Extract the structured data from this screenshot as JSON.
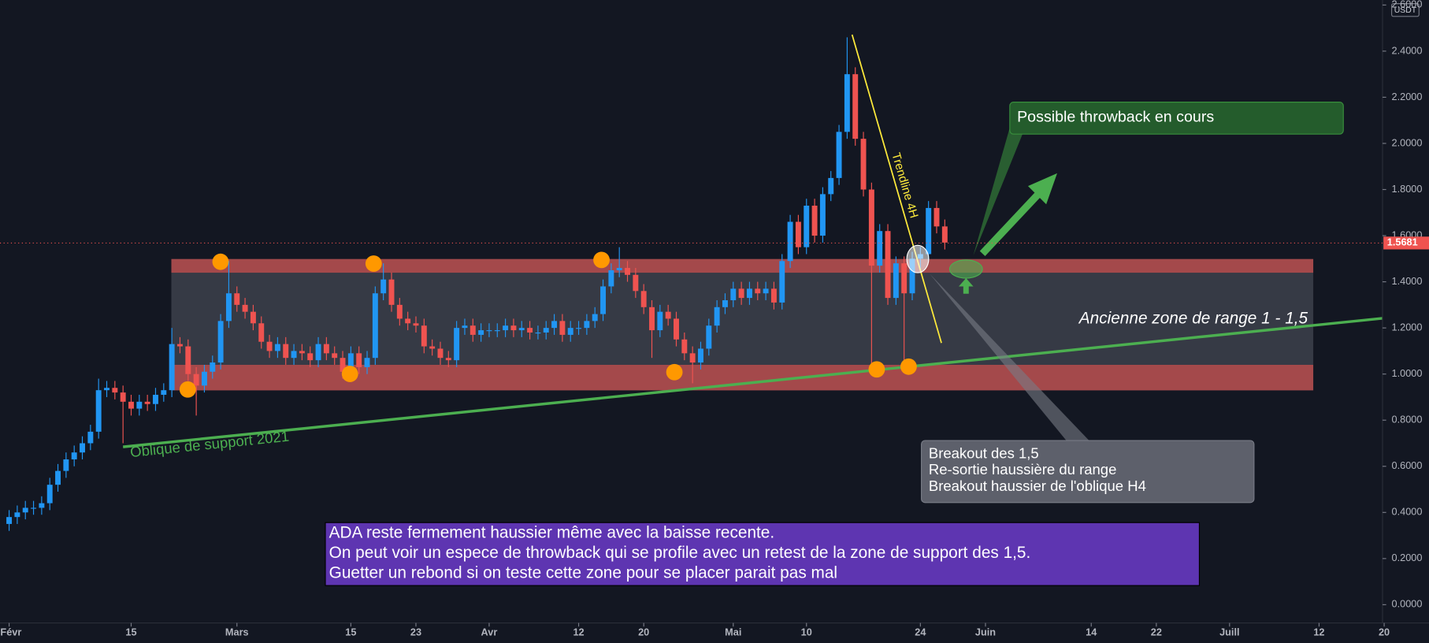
{
  "chart_data": {
    "type": "candlestick",
    "currency": "USDT",
    "up_color": "#2196f3",
    "down_color": "#ef5350",
    "x": [
      0,
      1,
      2,
      3,
      4,
      5,
      6,
      7,
      8,
      9,
      10,
      11,
      12,
      13,
      14,
      15,
      16,
      17,
      18,
      19,
      20,
      21,
      22,
      23,
      24,
      25,
      26,
      27,
      28,
      29,
      30,
      31,
      32,
      33,
      34,
      35,
      36,
      37,
      38,
      39,
      40,
      41,
      42,
      43,
      44,
      45,
      46,
      47,
      48,
      49,
      50,
      51,
      52,
      53,
      54,
      55,
      56,
      57,
      58,
      59,
      60,
      61,
      62,
      63,
      64,
      65,
      66,
      67,
      68,
      69,
      70,
      71,
      72,
      73,
      74,
      75,
      76,
      77,
      78,
      79,
      80,
      81,
      82,
      83,
      84,
      85,
      86,
      87,
      88,
      89,
      90,
      91,
      92,
      93,
      94,
      95,
      96,
      97,
      98,
      99,
      100,
      101,
      102,
      103,
      104,
      105,
      106,
      107,
      108,
      109,
      110,
      111,
      112,
      113,
      114,
      115
    ],
    "open": [
      0.35,
      0.38,
      0.4,
      0.42,
      0.42,
      0.44,
      0.52,
      0.58,
      0.63,
      0.66,
      0.7,
      0.75,
      0.93,
      0.94,
      0.92,
      0.88,
      0.85,
      0.88,
      0.87,
      0.91,
      0.93,
      1.13,
      1.12,
      1.0,
      0.95,
      1.01,
      1.05,
      1.23,
      1.35,
      1.3,
      1.27,
      1.22,
      1.14,
      1.1,
      1.13,
      1.07,
      1.1,
      1.09,
      1.06,
      1.13,
      1.09,
      1.07,
      1.01,
      1.09,
      1.03,
      1.07,
      1.35,
      1.41,
      1.3,
      1.24,
      1.22,
      1.21,
      1.12,
      1.11,
      1.07,
      1.06,
      1.2,
      1.21,
      1.17,
      1.19,
      1.19,
      1.19,
      1.21,
      1.19,
      1.2,
      1.18,
      1.18,
      1.2,
      1.23,
      1.17,
      1.2,
      1.2,
      1.23,
      1.26,
      1.38,
      1.45,
      1.46,
      1.43,
      1.36,
      1.29,
      1.19,
      1.27,
      1.24,
      1.15,
      1.09,
      1.05,
      1.11,
      1.21,
      1.29,
      1.32,
      1.37,
      1.33,
      1.37,
      1.35,
      1.37,
      1.31,
      1.49,
      1.66,
      1.55,
      1.73,
      1.6,
      1.78,
      1.85,
      2.05,
      2.3,
      2.02,
      1.8,
      1.47,
      1.62,
      1.33,
      1.48,
      1.35,
      1.5,
      1.52,
      1.72,
      1.64
    ],
    "high": [
      0.41,
      0.43,
      0.45,
      0.45,
      0.47,
      0.55,
      0.61,
      0.66,
      0.69,
      0.73,
      0.78,
      0.98,
      0.97,
      0.97,
      0.95,
      0.91,
      0.91,
      0.91,
      0.94,
      0.96,
      1.2,
      1.16,
      1.15,
      1.03,
      1.04,
      1.08,
      1.26,
      1.49,
      1.38,
      1.33,
      1.3,
      1.25,
      1.17,
      1.16,
      1.16,
      1.13,
      1.13,
      1.12,
      1.16,
      1.16,
      1.12,
      1.1,
      1.12,
      1.12,
      1.1,
      1.38,
      1.48,
      1.44,
      1.33,
      1.27,
      1.25,
      1.24,
      1.15,
      1.14,
      1.1,
      1.23,
      1.24,
      1.24,
      1.22,
      1.22,
      1.22,
      1.24,
      1.24,
      1.23,
      1.23,
      1.21,
      1.23,
      1.26,
      1.26,
      1.23,
      1.23,
      1.26,
      1.29,
      1.41,
      1.48,
      1.55,
      1.49,
      1.46,
      1.39,
      1.32,
      1.3,
      1.3,
      1.27,
      1.18,
      1.12,
      1.14,
      1.24,
      1.32,
      1.35,
      1.4,
      1.4,
      1.4,
      1.4,
      1.4,
      1.4,
      1.52,
      1.69,
      1.69,
      1.76,
      1.76,
      1.81,
      1.88,
      2.08,
      2.46,
      2.33,
      2.05,
      1.83,
      1.65,
      1.65,
      1.51,
      1.51,
      1.53,
      1.55,
      1.75,
      1.75,
      1.67
    ],
    "low": [
      0.32,
      0.35,
      0.37,
      0.39,
      0.39,
      0.41,
      0.49,
      0.55,
      0.6,
      0.63,
      0.67,
      0.72,
      0.9,
      0.89,
      0.7,
      0.82,
      0.82,
      0.84,
      0.84,
      0.88,
      0.9,
      1.09,
      0.97,
      0.82,
      0.92,
      0.98,
      1.02,
      1.2,
      1.27,
      1.24,
      1.19,
      1.11,
      1.07,
      1.07,
      1.04,
      1.04,
      1.06,
      1.03,
      1.03,
      1.06,
      1.04,
      0.98,
      0.98,
      1.0,
      1.0,
      1.04,
      1.32,
      1.27,
      1.21,
      1.19,
      1.18,
      1.09,
      1.08,
      1.04,
      1.03,
      1.03,
      1.17,
      1.14,
      1.14,
      1.16,
      1.16,
      1.16,
      1.16,
      1.16,
      1.15,
      1.15,
      1.15,
      1.17,
      1.14,
      1.14,
      1.17,
      1.17,
      1.2,
      1.23,
      1.35,
      1.42,
      1.4,
      1.33,
      1.26,
      1.07,
      1.16,
      1.21,
      1.12,
      1.06,
      0.96,
      1.02,
      1.08,
      1.18,
      1.26,
      1.29,
      1.3,
      1.3,
      1.32,
      1.32,
      1.28,
      1.28,
      1.46,
      1.52,
      1.52,
      1.57,
      1.57,
      1.75,
      1.82,
      2.02,
      1.99,
      1.77,
      1.02,
      1.44,
      1.3,
      1.3,
      1.02,
      1.32,
      1.45,
      1.49,
      1.61,
      1.54
    ],
    "close": [
      0.38,
      0.4,
      0.42,
      0.42,
      0.44,
      0.52,
      0.58,
      0.63,
      0.66,
      0.7,
      0.75,
      0.93,
      0.94,
      0.92,
      0.88,
      0.85,
      0.88,
      0.87,
      0.91,
      0.93,
      1.13,
      1.12,
      1.0,
      0.95,
      1.01,
      1.05,
      1.23,
      1.35,
      1.3,
      1.27,
      1.22,
      1.14,
      1.1,
      1.13,
      1.07,
      1.1,
      1.09,
      1.06,
      1.13,
      1.09,
      1.07,
      1.01,
      1.09,
      1.03,
      1.07,
      1.35,
      1.41,
      1.3,
      1.24,
      1.22,
      1.21,
      1.12,
      1.11,
      1.07,
      1.06,
      1.2,
      1.21,
      1.17,
      1.19,
      1.19,
      1.19,
      1.21,
      1.19,
      1.2,
      1.18,
      1.18,
      1.2,
      1.23,
      1.17,
      1.2,
      1.2,
      1.23,
      1.26,
      1.38,
      1.45,
      1.46,
      1.43,
      1.36,
      1.29,
      1.19,
      1.27,
      1.24,
      1.15,
      1.09,
      1.05,
      1.11,
      1.21,
      1.29,
      1.32,
      1.37,
      1.33,
      1.37,
      1.35,
      1.37,
      1.31,
      1.49,
      1.66,
      1.55,
      1.73,
      1.6,
      1.78,
      1.85,
      2.05,
      2.3,
      2.02,
      1.8,
      1.47,
      1.62,
      1.33,
      1.48,
      1.35,
      1.5,
      1.52,
      1.72,
      1.64,
      1.57
    ],
    "last_price": 1.5681,
    "xlim": [
      -1.12,
      168.8
    ],
    "xticks": [
      {
        "value": 0,
        "label": "Févr"
      },
      15,
      {
        "value": 28,
        "label": "Mars"
      },
      {
        "value": 42,
        "label": "15"
      },
      {
        "value": 50,
        "label": "23"
      },
      {
        "value": 59,
        "label": "Avr"
      },
      {
        "value": 70,
        "label": "12"
      },
      {
        "value": 78,
        "label": "20"
      },
      {
        "value": 89,
        "label": "Mai"
      },
      {
        "value": 98,
        "label": "10"
      },
      {
        "value": 112,
        "label": "24"
      },
      {
        "value": 120,
        "label": "Juin"
      },
      {
        "value": 133,
        "label": "14"
      },
      {
        "value": 141,
        "label": "22"
      },
      {
        "value": 150,
        "label": "Juill"
      },
      {
        "value": 161,
        "label": "12"
      },
      {
        "value": 169,
        "label": "20"
      }
    ],
    "ylim": [
      -0.0791,
      2.6217
    ],
    "yticks": [
      {
        "value": 0,
        "label": "0.0000"
      },
      {
        "value": 0.2,
        "label": "0.2000"
      },
      {
        "value": 0.4,
        "label": "0.4000"
      },
      {
        "value": 0.6,
        "label": "0.6000"
      },
      {
        "value": 0.8,
        "label": "0.8000"
      },
      {
        "value": 1,
        "label": "1.0000"
      },
      {
        "value": 1.2,
        "label": "1.2000"
      },
      {
        "value": 1.4,
        "label": "1.4000"
      },
      {
        "value": 1.6,
        "label": "1.6000"
      },
      {
        "value": 1.8,
        "label": "1.8000"
      },
      {
        "value": 2,
        "label": "2.0000"
      },
      {
        "value": 2.2,
        "label": "2.2000"
      },
      {
        "value": 2.4,
        "label": "2.4000"
      },
      {
        "value": 2.6,
        "label": "2.6000"
      }
    ],
    "annotations": {
      "throwback": "Possible throwback en cours",
      "range": "Ancienne zone de range 1 - 1,5",
      "support": "Oblique de support 2021",
      "trendline": "Trendline 4H",
      "breakout": [
        "Breakout des 1,5",
        "Re-sortie haussière du range",
        "Breakout haussier de l'oblique H4"
      ],
      "comment": [
        "ADA reste fermement haussier même avec la baisse recente.",
        "On peut voir un espece de throwback qui se profile avec un retest de la zone de support des 1,5.",
        "Guetter un rebond si on teste cette zone pour se placer parait pas mal"
      ]
    }
  }
}
